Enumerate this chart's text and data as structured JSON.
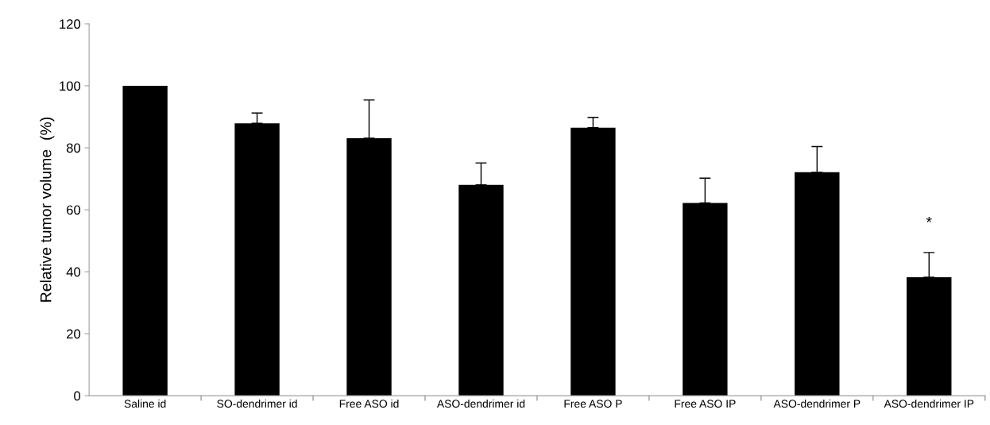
{
  "chart_data": {
    "type": "bar",
    "ylabel": "Relative tumor volume  (%)",
    "categories": [
      "Saline id",
      "SO-dendrimer id",
      "Free ASO id",
      "ASO-dendrimer id",
      "Free ASO P",
      "Free ASO IP",
      "ASO-dendrimer P",
      "ASO-dendrimer IP"
    ],
    "values": [
      100,
      87.9,
      83.1,
      68.0,
      86.5,
      62.2,
      72.1,
      38.2
    ],
    "errors": [
      null,
      [
        87.9,
        91.2
      ],
      [
        83.1,
        95.4
      ],
      [
        68.0,
        75.1
      ],
      [
        86.5,
        89.8
      ],
      [
        62.2,
        70.2
      ],
      [
        72.1,
        80.4
      ],
      [
        38.2,
        46.2
      ]
    ],
    "color": "#000000",
    "ylim": [
      0,
      120
    ],
    "yticks": [
      0,
      20,
      40,
      60,
      80,
      100,
      120
    ],
    "annotations": [
      "*"
    ],
    "grid": false,
    "legend": false
  }
}
